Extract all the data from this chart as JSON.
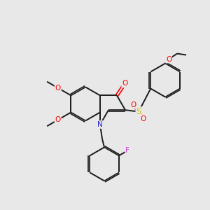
{
  "bg_color": "#e8e8e8",
  "bond_color": "#1a1a1a",
  "atom_colors": {
    "O": "#ff0000",
    "N": "#2222cc",
    "S": "#cccc00",
    "F": "#cc44cc"
  },
  "figsize": [
    3.0,
    3.0
  ],
  "dpi": 100,
  "bl": 24
}
